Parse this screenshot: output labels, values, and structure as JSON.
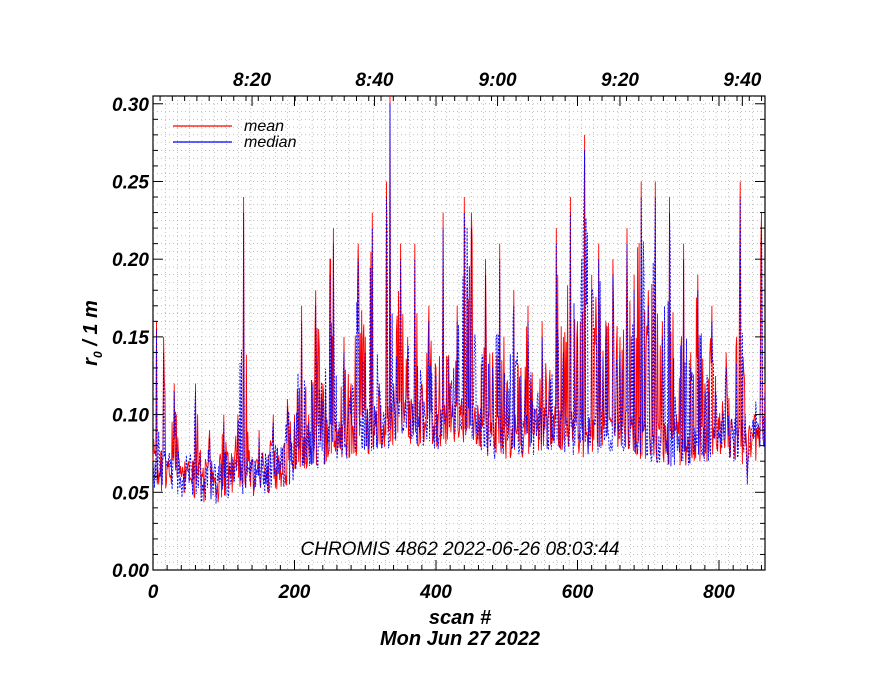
{
  "chart_data": {
    "type": "line",
    "ylabel": "r₀ / 1 m",
    "ylabel_base": "r",
    "ylabel_sub": "0",
    "ylabel_rest": " / 1 m",
    "xlabel": "scan #",
    "date_label": "Mon Jun 27 2022",
    "annotation": "CHROMIS 4862 2022-06-26 08:03:44",
    "xlim": [
      0,
      865
    ],
    "ylim": [
      0.0,
      0.305
    ],
    "x_ticks": [
      0,
      200,
      400,
      600,
      800
    ],
    "x_tick_labels": [
      "0",
      "200",
      "400",
      "600",
      "800"
    ],
    "y_ticks": [
      0.0,
      0.05,
      0.1,
      0.15,
      0.2,
      0.25,
      0.3
    ],
    "y_tick_labels": [
      "0.00",
      "0.05",
      "0.10",
      "0.15",
      "0.20",
      "0.25",
      "0.30"
    ],
    "top_axis": {
      "ticks": [
        140,
        313,
        487,
        660,
        833
      ],
      "labels": [
        "8:20",
        "8:40",
        "9:00",
        "9:20",
        "9:40"
      ]
    },
    "grid": true,
    "legend_position": "top-left",
    "series": [
      {
        "name": "mean",
        "color": "#ff0000",
        "anchors": [
          [
            0,
            0.07
          ],
          [
            5,
            0.16
          ],
          [
            10,
            0.06
          ],
          [
            15,
            0.15
          ],
          [
            20,
            0.07
          ],
          [
            30,
            0.12
          ],
          [
            40,
            0.06
          ],
          [
            50,
            0.07
          ],
          [
            60,
            0.12
          ],
          [
            70,
            0.06
          ],
          [
            80,
            0.09
          ],
          [
            90,
            0.05
          ],
          [
            100,
            0.1
          ],
          [
            110,
            0.06
          ],
          [
            120,
            0.1
          ],
          [
            128,
            0.24
          ],
          [
            135,
            0.07
          ],
          [
            150,
            0.09
          ],
          [
            160,
            0.06
          ],
          [
            170,
            0.1
          ],
          [
            180,
            0.07
          ],
          [
            190,
            0.11
          ],
          [
            200,
            0.1
          ],
          [
            210,
            0.17
          ],
          [
            220,
            0.1
          ],
          [
            230,
            0.18
          ],
          [
            240,
            0.12
          ],
          [
            250,
            0.2
          ],
          [
            255,
            0.22
          ],
          [
            262,
            0.09
          ],
          [
            270,
            0.15
          ],
          [
            280,
            0.12
          ],
          [
            290,
            0.21
          ],
          [
            300,
            0.15
          ],
          [
            310,
            0.23
          ],
          [
            320,
            0.12
          ],
          [
            330,
            0.25
          ],
          [
            335,
            0.31
          ],
          [
            340,
            0.12
          ],
          [
            350,
            0.21
          ],
          [
            360,
            0.15
          ],
          [
            370,
            0.21
          ],
          [
            380,
            0.12
          ],
          [
            390,
            0.17
          ],
          [
            400,
            0.13
          ],
          [
            410,
            0.23
          ],
          [
            420,
            0.12
          ],
          [
            430,
            0.17
          ],
          [
            440,
            0.24
          ],
          [
            450,
            0.23
          ],
          [
            460,
            0.1
          ],
          [
            470,
            0.2
          ],
          [
            480,
            0.14
          ],
          [
            490,
            0.21
          ],
          [
            500,
            0.12
          ],
          [
            510,
            0.18
          ],
          [
            520,
            0.13
          ],
          [
            530,
            0.17
          ],
          [
            540,
            0.1
          ],
          [
            550,
            0.16
          ],
          [
            560,
            0.12
          ],
          [
            570,
            0.22
          ],
          [
            580,
            0.15
          ],
          [
            590,
            0.24
          ],
          [
            600,
            0.16
          ],
          [
            610,
            0.28
          ],
          [
            620,
            0.19
          ],
          [
            630,
            0.21
          ],
          [
            640,
            0.16
          ],
          [
            650,
            0.2
          ],
          [
            660,
            0.15
          ],
          [
            670,
            0.22
          ],
          [
            680,
            0.19
          ],
          [
            690,
            0.25
          ],
          [
            700,
            0.18
          ],
          [
            710,
            0.25
          ],
          [
            720,
            0.16
          ],
          [
            730,
            0.24
          ],
          [
            740,
            0.1
          ],
          [
            750,
            0.21
          ],
          [
            760,
            0.14
          ],
          [
            770,
            0.19
          ],
          [
            780,
            0.12
          ],
          [
            790,
            0.17
          ],
          [
            800,
            0.09
          ],
          [
            810,
            0.14
          ],
          [
            820,
            0.09
          ],
          [
            830,
            0.25
          ],
          [
            840,
            0.06
          ],
          [
            850,
            0.1
          ],
          [
            860,
            0.23
          ],
          [
            865,
            0.12
          ]
        ]
      },
      {
        "name": "median",
        "color": "#0000ff",
        "anchors": [
          [
            0,
            0.065
          ],
          [
            5,
            0.155
          ],
          [
            10,
            0.06
          ],
          [
            15,
            0.14
          ],
          [
            20,
            0.065
          ],
          [
            30,
            0.115
          ],
          [
            40,
            0.055
          ],
          [
            50,
            0.065
          ],
          [
            60,
            0.115
          ],
          [
            70,
            0.055
          ],
          [
            80,
            0.085
          ],
          [
            90,
            0.05
          ],
          [
            100,
            0.095
          ],
          [
            110,
            0.055
          ],
          [
            120,
            0.095
          ],
          [
            128,
            0.23
          ],
          [
            135,
            0.065
          ],
          [
            150,
            0.085
          ],
          [
            160,
            0.055
          ],
          [
            170,
            0.095
          ],
          [
            180,
            0.065
          ],
          [
            190,
            0.105
          ],
          [
            200,
            0.095
          ],
          [
            210,
            0.16
          ],
          [
            220,
            0.095
          ],
          [
            230,
            0.17
          ],
          [
            240,
            0.11
          ],
          [
            250,
            0.19
          ],
          [
            255,
            0.21
          ],
          [
            262,
            0.085
          ],
          [
            270,
            0.14
          ],
          [
            280,
            0.115
          ],
          [
            290,
            0.2
          ],
          [
            300,
            0.14
          ],
          [
            310,
            0.22
          ],
          [
            320,
            0.115
          ],
          [
            330,
            0.24
          ],
          [
            335,
            0.3
          ],
          [
            340,
            0.115
          ],
          [
            350,
            0.2
          ],
          [
            360,
            0.14
          ],
          [
            370,
            0.2
          ],
          [
            380,
            0.115
          ],
          [
            390,
            0.16
          ],
          [
            400,
            0.125
          ],
          [
            410,
            0.22
          ],
          [
            420,
            0.115
          ],
          [
            430,
            0.16
          ],
          [
            440,
            0.23
          ],
          [
            450,
            0.22
          ],
          [
            460,
            0.095
          ],
          [
            470,
            0.19
          ],
          [
            480,
            0.13
          ],
          [
            490,
            0.2
          ],
          [
            500,
            0.115
          ],
          [
            510,
            0.17
          ],
          [
            520,
            0.125
          ],
          [
            530,
            0.16
          ],
          [
            540,
            0.095
          ],
          [
            550,
            0.15
          ],
          [
            560,
            0.115
          ],
          [
            570,
            0.21
          ],
          [
            580,
            0.14
          ],
          [
            590,
            0.23
          ],
          [
            600,
            0.15
          ],
          [
            610,
            0.27
          ],
          [
            620,
            0.18
          ],
          [
            630,
            0.2
          ],
          [
            640,
            0.15
          ],
          [
            650,
            0.19
          ],
          [
            660,
            0.14
          ],
          [
            670,
            0.21
          ],
          [
            680,
            0.18
          ],
          [
            690,
            0.24
          ],
          [
            700,
            0.17
          ],
          [
            710,
            0.24
          ],
          [
            720,
            0.15
          ],
          [
            730,
            0.23
          ],
          [
            740,
            0.095
          ],
          [
            750,
            0.2
          ],
          [
            760,
            0.13
          ],
          [
            770,
            0.18
          ],
          [
            780,
            0.115
          ],
          [
            790,
            0.16
          ],
          [
            800,
            0.085
          ],
          [
            810,
            0.13
          ],
          [
            820,
            0.085
          ],
          [
            830,
            0.24
          ],
          [
            840,
            0.055
          ],
          [
            850,
            0.095
          ],
          [
            860,
            0.22
          ],
          [
            865,
            0.115
          ]
        ]
      }
    ],
    "baseline_band": {
      "description": "dense lower envelope of both series",
      "anchors": [
        [
          0,
          0.065
        ],
        [
          40,
          0.06
        ],
        [
          80,
          0.055
        ],
        [
          120,
          0.06
        ],
        [
          160,
          0.062
        ],
        [
          200,
          0.07
        ],
        [
          240,
          0.08
        ],
        [
          280,
          0.085
        ],
        [
          320,
          0.09
        ],
        [
          360,
          0.095
        ],
        [
          400,
          0.09
        ],
        [
          440,
          0.095
        ],
        [
          480,
          0.085
        ],
        [
          520,
          0.085
        ],
        [
          560,
          0.09
        ],
        [
          600,
          0.085
        ],
        [
          640,
          0.09
        ],
        [
          680,
          0.085
        ],
        [
          720,
          0.08
        ],
        [
          760,
          0.08
        ],
        [
          800,
          0.085
        ],
        [
          840,
          0.08
        ],
        [
          865,
          0.085
        ]
      ]
    }
  }
}
